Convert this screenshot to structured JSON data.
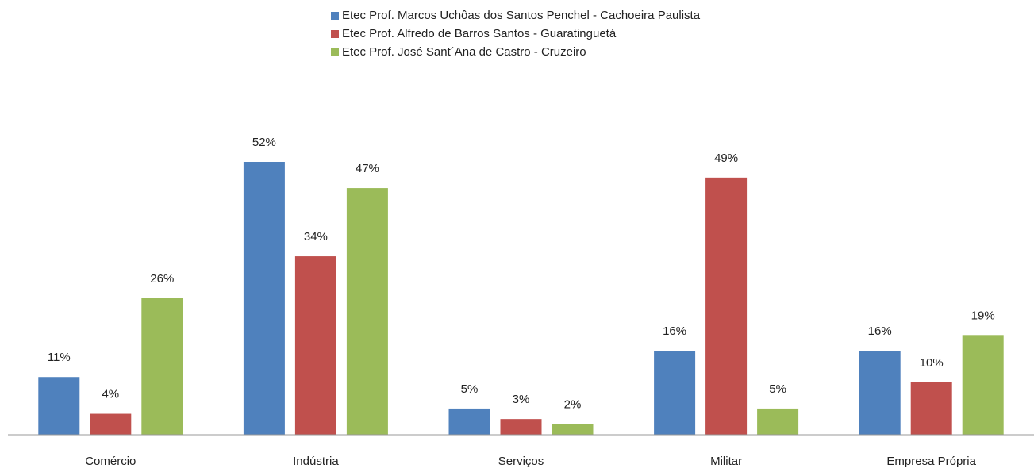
{
  "chart_data": {
    "type": "bar",
    "categories": [
      "Comércio",
      "Indústria",
      "Serviços",
      "Militar",
      "Empresa Própria"
    ],
    "series": [
      {
        "name": "Etec Prof. Marcos Uchôas dos Santos Penchel - Cachoeira Paulista",
        "color": "#4f81bd",
        "values": [
          11,
          52,
          5,
          16,
          16
        ],
        "value_labels": [
          "11%",
          "52%",
          "5%",
          "16%",
          "16%"
        ]
      },
      {
        "name": "Etec Prof. Alfredo de Barros Santos  - Guaratinguetá",
        "color": "#c0504d",
        "values": [
          4,
          34,
          3,
          49,
          10
        ],
        "value_labels": [
          "4%",
          "34%",
          "3%",
          "49%",
          "10%"
        ]
      },
      {
        "name": "Etec Prof. José Sant´Ana de Castro - Cruzeiro",
        "color": "#9bbb59",
        "values": [
          26,
          47,
          2,
          5,
          19
        ],
        "value_labels": [
          "26%",
          "47%",
          "2%",
          "5%",
          "19%"
        ]
      }
    ]
  }
}
